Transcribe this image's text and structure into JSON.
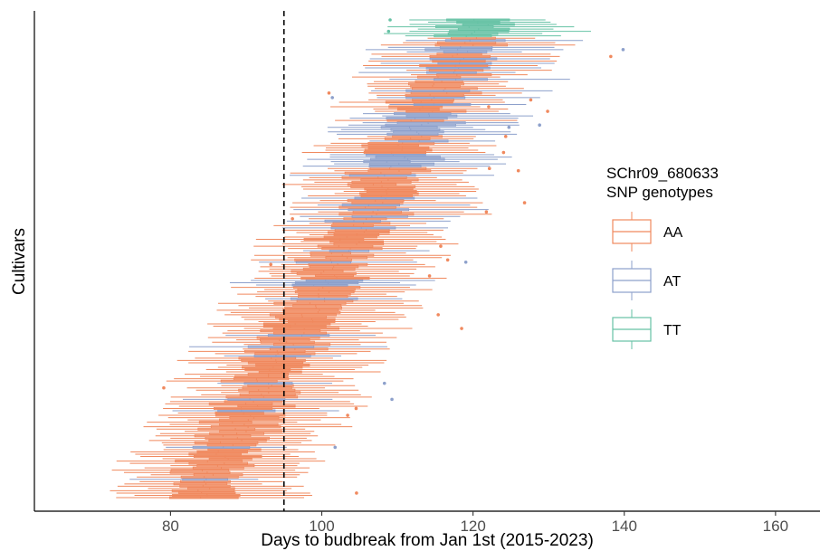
{
  "chart_data": {
    "type": "boxplot-horizontal",
    "xlabel": "Days to budbreak from Jan 1st (2015-2023)",
    "ylabel": "Cultivars",
    "xlim": [
      62,
      166
    ],
    "x_ticks": [
      80,
      100,
      120,
      140,
      160
    ],
    "reference_line": {
      "x": 95,
      "style": "dashed",
      "color": "#000000"
    },
    "legend": {
      "title_lines": [
        "SChr09_680633",
        "SNP genotypes"
      ],
      "placement": "right",
      "entries": [
        {
          "label": "AA",
          "color": "#f0895e"
        },
        {
          "label": "AT",
          "color": "#8da0cb"
        },
        {
          "label": "TT",
          "color": "#66c2a5"
        }
      ]
    },
    "n_cultivars": 210,
    "genotype_counts": {
      "AA": 150,
      "AT": 52,
      "TT": 8
    },
    "median_range": {
      "early": 83.5,
      "late": 121
    },
    "grid": false
  }
}
